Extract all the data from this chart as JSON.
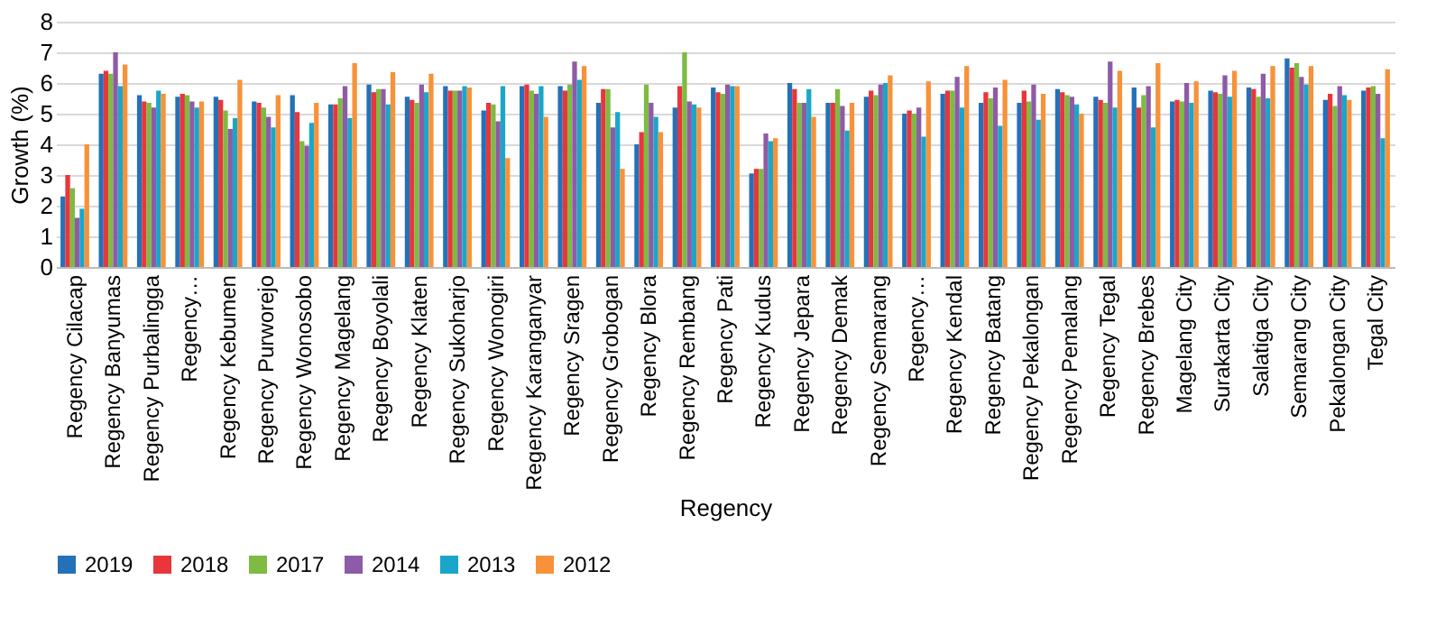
{
  "chart_data": {
    "type": "bar",
    "xlabel": "Regency",
    "ylabel": "Growth (%)",
    "categories": [
      "Regency Cilacap",
      "Regency Banyumas",
      "Regency Purbalingga",
      "Regency…",
      "Regency Kebumen",
      "Regency Purworejo",
      "Regency Wonosobo",
      "Regency Magelang",
      "Regency Boyolali",
      "Regency Klaten",
      "Regency Sukoharjo",
      "Regency Wonogiri",
      "Regency Karanganyar",
      "Regency Sragen",
      "Regency Grobogan",
      "Regency Blora",
      "Regency Rembang",
      "Regency Pati",
      "Regency Kudus",
      "Regency Jepara",
      "Regency Demak",
      "Regency Semarang",
      "Regency…",
      "Regency Kendal",
      "Regency Batang",
      "Regency Pekalongan",
      "Regency Pemalang",
      "Regency Tegal",
      "Regency Brebes",
      "Magelang City",
      "Surakarta City",
      "Salatiga City",
      "Semarang City",
      "Pekalongan City",
      "Tegal City"
    ],
    "series": [
      {
        "name": "2019",
        "color": "#2471b8",
        "values": [
          2.3,
          6.3,
          5.6,
          5.55,
          5.55,
          5.4,
          5.6,
          5.3,
          5.95,
          5.55,
          5.9,
          5.1,
          5.9,
          5.9,
          5.35,
          4.0,
          5.2,
          5.85,
          3.05,
          6.0,
          5.35,
          5.55,
          5.0,
          5.65,
          5.35,
          5.35,
          5.8,
          5.55,
          5.85,
          5.4,
          5.75,
          5.85,
          6.8,
          5.45,
          5.75
        ]
      },
      {
        "name": "2018",
        "color": "#e8363a",
        "values": [
          3.0,
          6.4,
          5.4,
          5.65,
          5.45,
          5.35,
          5.05,
          5.3,
          5.7,
          5.45,
          5.75,
          5.35,
          5.95,
          5.75,
          5.8,
          4.4,
          5.9,
          5.7,
          3.2,
          5.8,
          5.35,
          5.75,
          5.1,
          5.75,
          5.7,
          5.75,
          5.7,
          5.45,
          5.2,
          5.45,
          5.7,
          5.8,
          6.5,
          5.65,
          5.85
        ]
      },
      {
        "name": "2017",
        "color": "#7dbb42",
        "values": [
          2.57,
          6.3,
          5.35,
          5.6,
          5.1,
          5.2,
          4.1,
          5.5,
          5.8,
          5.35,
          5.75,
          5.3,
          5.75,
          5.95,
          5.8,
          5.95,
          7.0,
          5.65,
          3.2,
          5.35,
          5.8,
          5.6,
          5.0,
          5.75,
          5.5,
          5.4,
          5.6,
          5.35,
          5.6,
          5.4,
          5.65,
          5.55,
          6.65,
          5.25,
          5.9
        ]
      },
      {
        "name": "2014",
        "color": "#8e5ba6",
        "values": [
          1.6,
          7.0,
          5.2,
          5.4,
          4.5,
          4.9,
          3.95,
          5.9,
          5.8,
          5.95,
          5.75,
          4.75,
          5.65,
          6.7,
          4.55,
          5.35,
          5.4,
          5.95,
          4.35,
          5.35,
          5.25,
          5.95,
          5.2,
          6.2,
          5.85,
          5.95,
          5.55,
          6.7,
          5.9,
          6.0,
          6.25,
          6.3,
          6.2,
          5.9,
          5.65
        ]
      },
      {
        "name": "2013",
        "color": "#1aa6c9",
        "values": [
          1.9,
          5.9,
          5.75,
          5.2,
          4.85,
          4.55,
          4.7,
          4.85,
          5.3,
          5.7,
          5.9,
          5.9,
          5.9,
          6.1,
          5.05,
          4.9,
          5.3,
          5.9,
          4.1,
          5.8,
          4.45,
          6.0,
          4.25,
          5.2,
          4.6,
          4.8,
          5.3,
          5.2,
          4.55,
          5.35,
          5.55,
          5.5,
          5.95,
          5.6,
          4.2
        ]
      },
      {
        "name": "2012",
        "color": "#f7923a",
        "values": [
          4.0,
          6.6,
          5.65,
          5.4,
          6.1,
          5.6,
          5.35,
          6.65,
          6.35,
          6.3,
          5.85,
          3.55,
          4.9,
          6.55,
          3.2,
          4.4,
          5.2,
          5.9,
          4.2,
          4.9,
          5.35,
          6.25,
          6.05,
          6.55,
          6.1,
          5.65,
          5.0,
          6.4,
          6.65,
          6.05,
          6.4,
          6.55,
          6.55,
          5.45,
          6.45
        ]
      }
    ],
    "ylim": [
      0,
      8
    ],
    "yticks": [
      0,
      1,
      2,
      3,
      4,
      5,
      6,
      7,
      8
    ],
    "grid": "y",
    "legend": "bottom"
  }
}
